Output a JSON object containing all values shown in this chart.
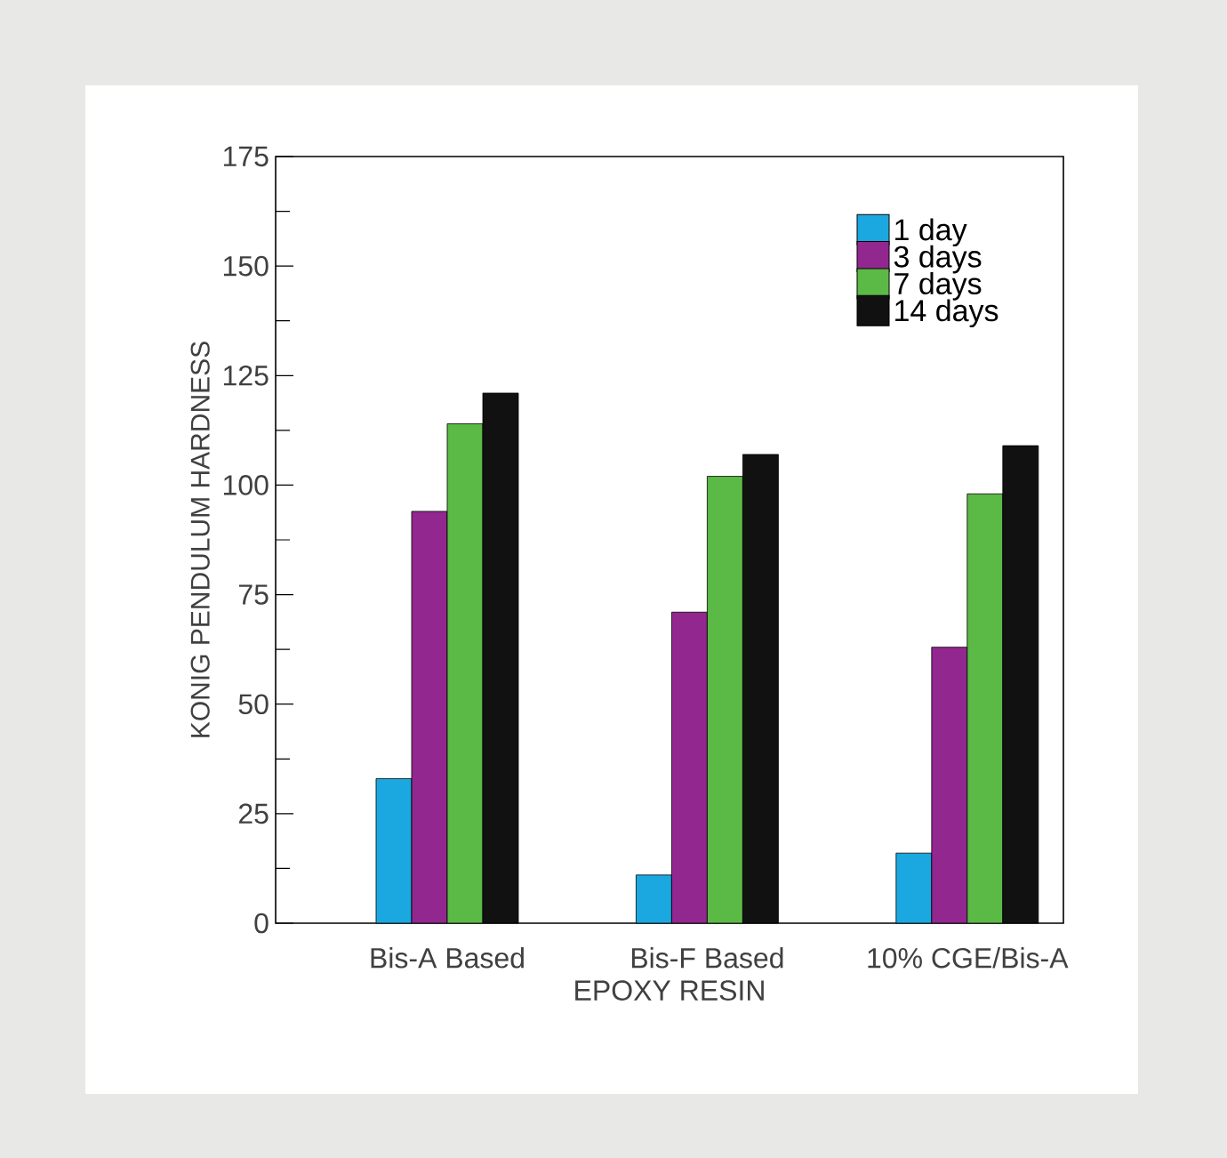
{
  "chart_data": {
    "type": "bar",
    "xlabel": "EPOXY RESIN",
    "ylabel": "KONIG PENDULUM HARDNESS",
    "categories": [
      "Bis-A Based",
      "Bis-F Based",
      "10% CGE/Bis-A"
    ],
    "series": [
      {
        "name": "1 day",
        "color": "#1ba8e0",
        "values": [
          33,
          11,
          16
        ]
      },
      {
        "name": "3 days",
        "color": "#92278f",
        "values": [
          94,
          71,
          63
        ]
      },
      {
        "name": "7 days",
        "color": "#5bb946",
        "values": [
          114,
          102,
          98
        ]
      },
      {
        "name": "14 days",
        "color": "#111111",
        "values": [
          121,
          107,
          109
        ]
      }
    ],
    "ylim": [
      0,
      175
    ],
    "yticks": [
      0,
      25,
      50,
      75,
      100,
      125,
      150,
      175
    ],
    "legend": "top right"
  }
}
